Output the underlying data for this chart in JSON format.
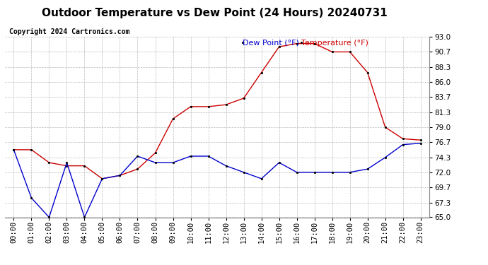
{
  "title": "Outdoor Temperature vs Dew Point (24 Hours) 20240731",
  "copyright": "Copyright 2024 Cartronics.com",
  "legend_dew": "Dew Point (°F)",
  "legend_temp": "Temperature (°F)",
  "temperature": [
    75.5,
    75.5,
    73.5,
    73.0,
    73.0,
    71.0,
    71.5,
    72.5,
    75.0,
    80.3,
    82.2,
    82.2,
    82.5,
    83.5,
    87.5,
    91.5,
    92.0,
    92.0,
    90.7,
    90.7,
    87.5,
    79.0,
    77.2,
    77.0
  ],
  "dew_point": [
    75.5,
    68.0,
    65.0,
    73.5,
    65.0,
    71.0,
    71.5,
    74.5,
    73.5,
    73.5,
    74.5,
    74.5,
    73.0,
    72.0,
    71.0,
    73.5,
    72.0,
    72.0,
    72.0,
    72.0,
    72.5,
    74.3,
    76.3,
    76.5
  ],
  "temp_color": "#cc0000",
  "dew_color": "#0000cc",
  "ylim_min": 65.0,
  "ylim_max": 93.0,
  "yticks": [
    65.0,
    67.3,
    69.7,
    72.0,
    74.3,
    76.7,
    79.0,
    81.3,
    83.7,
    86.0,
    88.3,
    90.7,
    93.0
  ],
  "bg_color": "#ffffff",
  "grid_color": "#bbbbbb",
  "title_fontsize": 11,
  "copyright_fontsize": 7,
  "legend_fontsize": 8,
  "tick_fontsize": 7.5
}
